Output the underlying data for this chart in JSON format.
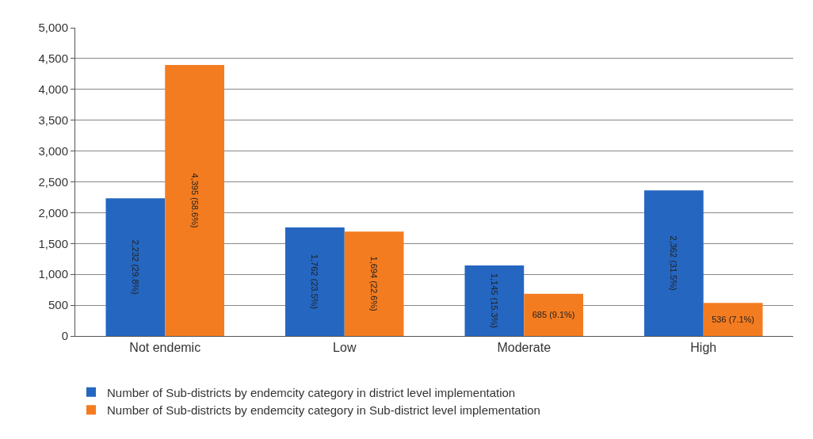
{
  "chart_data": {
    "type": "bar",
    "categories": [
      "Not endemic",
      "Low",
      "Moderate",
      "High"
    ],
    "series": [
      {
        "name": "Number of Sub-districts by endemcity category in district level implementation",
        "color": "#2566c0",
        "values": [
          2232,
          1762,
          1145,
          2362
        ],
        "value_labels": [
          "2,232 (29.8%)",
          "1,762 (23.5%)",
          "1,145 (15.3%)",
          "2,362 (31.5%)"
        ]
      },
      {
        "name": "Number of Sub-districts by endemcity category in Sub-district level implementation",
        "color": "#f47c20",
        "values": [
          4395,
          1694,
          685,
          536
        ],
        "value_labels": [
          "4,395 (58.6%)",
          "1,694 (22.6%)",
          "685 (9.1%)",
          "536 (7.1%)"
        ]
      }
    ],
    "ylim": [
      0,
      5000
    ],
    "yticks": [
      {
        "value": 0,
        "label": "0"
      },
      {
        "value": 500,
        "label": "500"
      },
      {
        "value": 1000,
        "label": "1,000"
      },
      {
        "value": 1500,
        "label": "1,500"
      },
      {
        "value": 2000,
        "label": "2,000"
      },
      {
        "value": 2500,
        "label": "2,500"
      },
      {
        "value": 3000,
        "label": "3,000"
      },
      {
        "value": 3500,
        "label": "3,500"
      },
      {
        "value": 4000,
        "label": "4,000"
      },
      {
        "value": 4500,
        "label": "4,500"
      },
      {
        "value": 5000,
        "label": "5,000"
      }
    ],
    "grid": "y",
    "legend": "bottom"
  }
}
